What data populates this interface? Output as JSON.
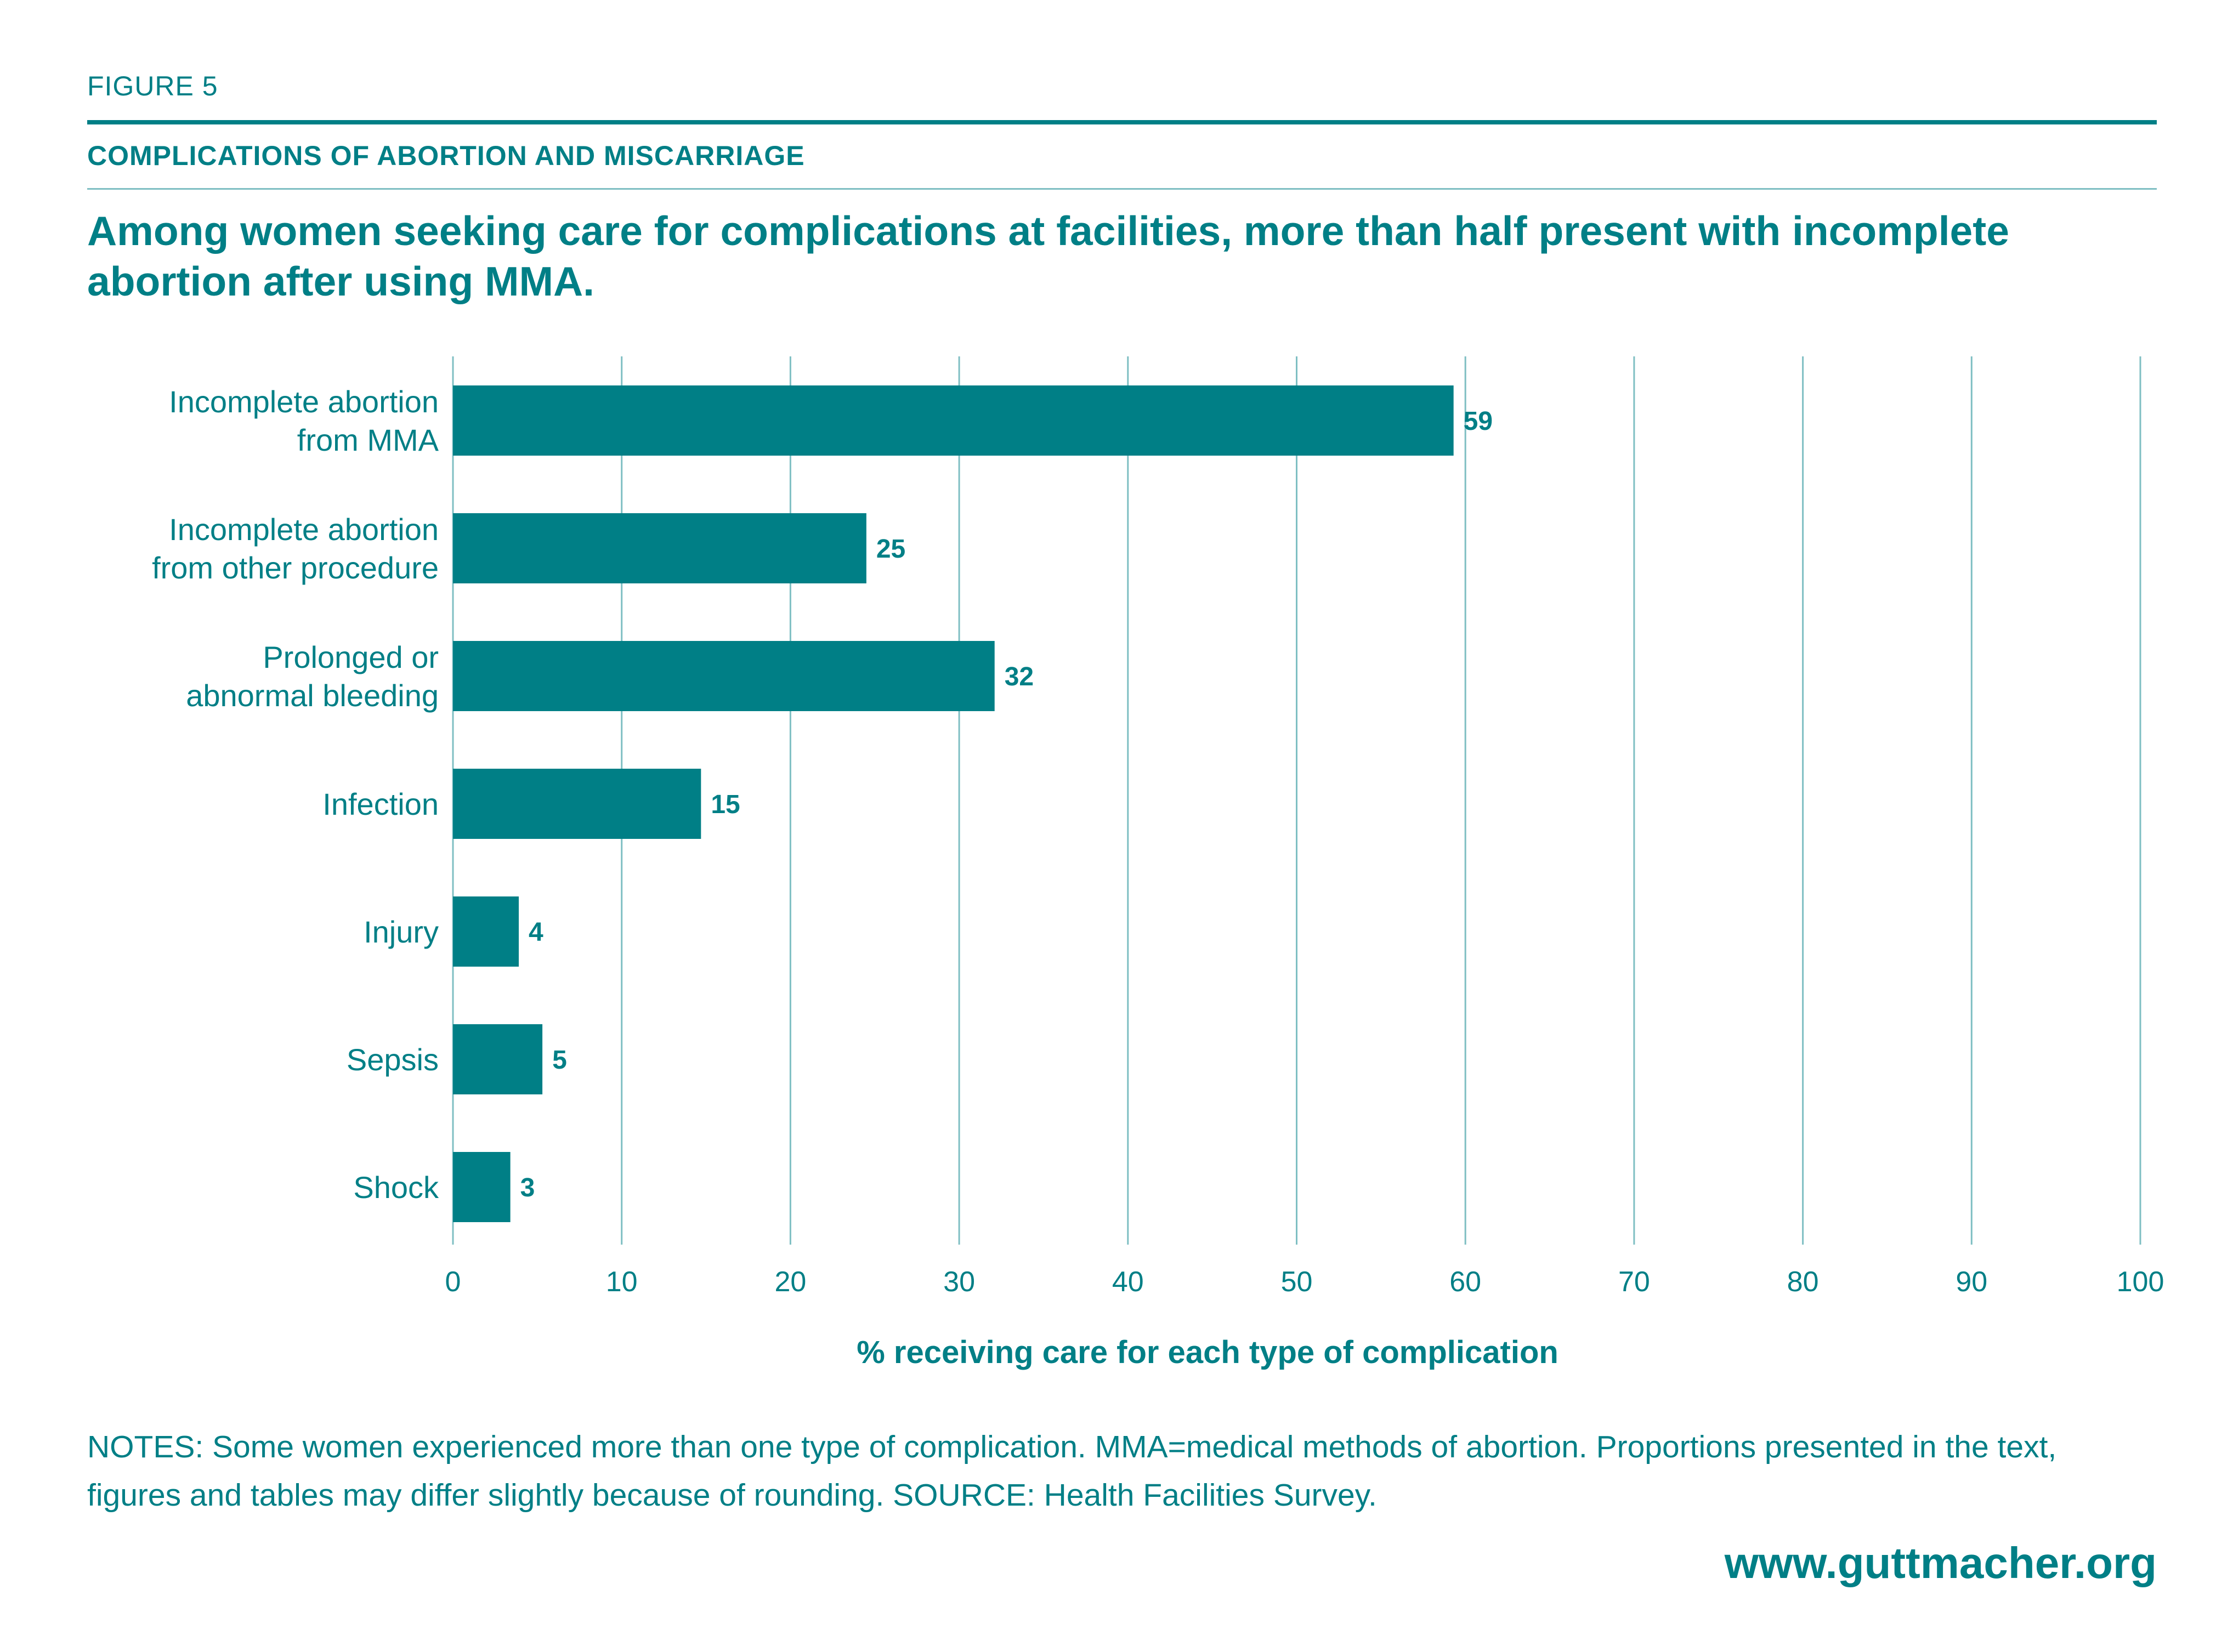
{
  "header": {
    "figure_label": "FIGURE 5",
    "section_title": "COMPLICATIONS OF ABORTION AND MISCARRIAGE",
    "headline": "Among women seeking care for complications at facilities, more than half present with incomplete abortion after using MMA."
  },
  "chart_data": {
    "type": "bar",
    "orientation": "horizontal",
    "categories": [
      [
        "Incomplete abortion",
        "from MMA"
      ],
      [
        "Incomplete abortion",
        "from other procedure"
      ],
      [
        "Prolonged or",
        "abnormal bleeding"
      ],
      [
        "Infection"
      ],
      [
        "Injury"
      ],
      [
        "Sepsis"
      ],
      [
        "Shock"
      ]
    ],
    "values": [
      59.3,
      24.5,
      32.1,
      14.7,
      3.9,
      5.3,
      3.4
    ],
    "value_labels": [
      "59",
      "25",
      "32",
      "15",
      "4",
      "5",
      "3"
    ],
    "xlim": [
      0,
      100
    ],
    "xticks": [
      0,
      10,
      20,
      30,
      40,
      50,
      60,
      70,
      80,
      90,
      100
    ],
    "xlabel": "% receiving care for each type of complication",
    "grid": "vertical",
    "bar_color": "#007f86",
    "grid_color": "#7fbfc3"
  },
  "footer": {
    "notes": "NOTES: Some women experienced more than one type of complication. MMA=medical methods of abortion. Proportions presented in the text, figures and tables may differ slightly because of rounding. SOURCE: Health Facilities Survey.",
    "website": "www.guttmacher.org"
  }
}
